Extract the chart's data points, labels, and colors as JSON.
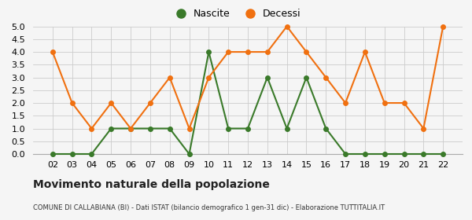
{
  "years": [
    "02",
    "03",
    "04",
    "05",
    "06",
    "07",
    "08",
    "09",
    "10",
    "11",
    "12",
    "13",
    "14",
    "15",
    "16",
    "17",
    "18",
    "19",
    "20",
    "21",
    "22"
  ],
  "nascite": [
    0,
    0,
    0,
    1,
    1,
    1,
    1,
    0,
    4,
    1,
    1,
    3,
    1,
    3,
    1,
    0,
    0,
    0,
    0,
    0,
    0
  ],
  "decessi": [
    4,
    2,
    1,
    2,
    1,
    2,
    3,
    1,
    3,
    4,
    4,
    4,
    5,
    4,
    3,
    2,
    4,
    2,
    2,
    1,
    5
  ],
  "nascite_color": "#3a7a2a",
  "decessi_color": "#f07010",
  "title": "Movimento naturale della popolazione",
  "subtitle": "COMUNE DI CALLABIANA (BI) - Dati ISTAT (bilancio demografico 1 gen-31 dic) - Elaborazione TUTTITALIA.IT",
  "ylim": [
    0,
    5.0
  ],
  "yticks": [
    0,
    0.5,
    1.0,
    1.5,
    2.0,
    2.5,
    3.0,
    3.5,
    4.0,
    4.5,
    5.0
  ],
  "legend_nascite": "Nascite",
  "legend_decessi": "Decessi",
  "bg_color": "#f5f5f5",
  "grid_color": "#cccccc"
}
